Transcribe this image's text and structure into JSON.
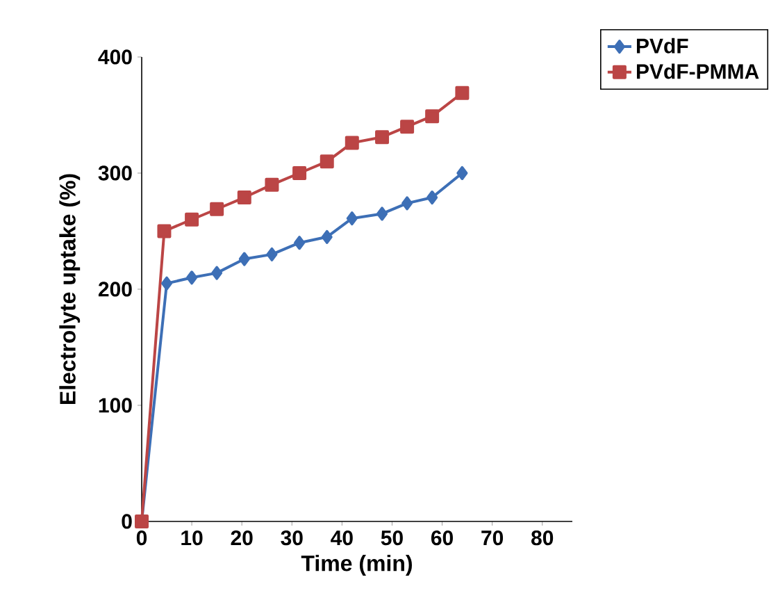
{
  "chart_data": {
    "type": "line",
    "xlabel": "Time (min)",
    "ylabel": "Electrolyte uptake (%)",
    "xlim": [
      0,
      86
    ],
    "ylim": [
      0,
      400
    ],
    "xticks": [
      0,
      10,
      20,
      30,
      40,
      50,
      60,
      70,
      80
    ],
    "yticks": [
      0,
      100,
      200,
      300,
      400
    ],
    "legend": "top right",
    "grid": false,
    "series": [
      {
        "name": "PVdF",
        "color": "#3d6fb6",
        "marker": "diamond",
        "x": [
          0,
          5,
          10,
          15,
          20.5,
          26,
          31.5,
          37,
          42,
          48,
          53,
          58,
          64
        ],
        "values": [
          0,
          205,
          210,
          214,
          226,
          230,
          240,
          245,
          261,
          265,
          274,
          279,
          300
        ]
      },
      {
        "name": "PVdF-PMMA",
        "color": "#bb4545",
        "marker": "square",
        "x": [
          0,
          4.5,
          10,
          15,
          20.5,
          26,
          31.5,
          37,
          42,
          48,
          53,
          58,
          64
        ],
        "values": [
          0,
          250,
          260,
          269,
          279,
          290,
          300,
          310,
          326,
          331,
          340,
          349,
          369
        ]
      }
    ]
  }
}
